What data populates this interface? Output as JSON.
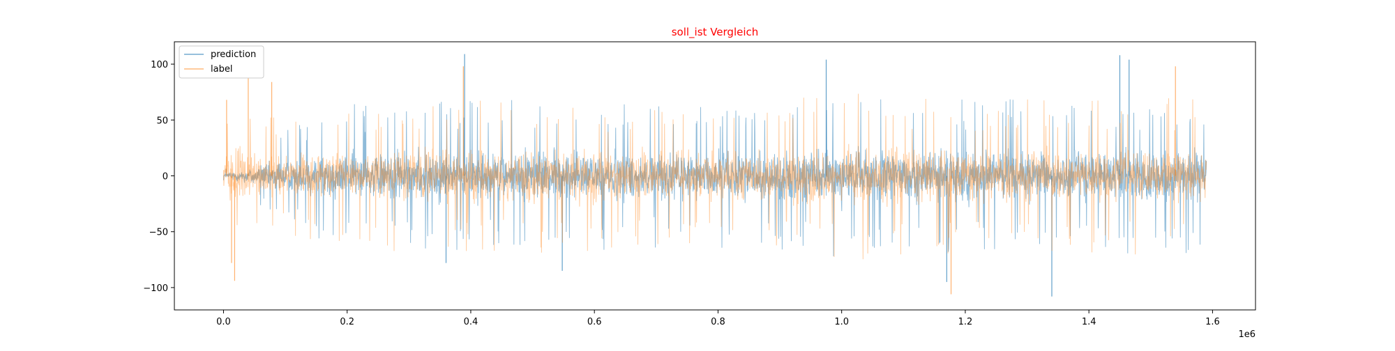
{
  "chart_data": {
    "type": "line",
    "title": "soll_ist Vergleich",
    "title_color": "#ff0000",
    "xlabel": "",
    "ylabel": "",
    "x_offset_label": "1e6",
    "xlim": [
      -0.0795,
      1.6695
    ],
    "ylim": [
      -120,
      120
    ],
    "x_ticks": [
      0.0,
      0.2,
      0.4,
      0.6,
      0.8,
      1.0,
      1.2,
      1.4,
      1.6
    ],
    "x_tick_labels": [
      "0.0",
      "0.2",
      "0.4",
      "0.6",
      "0.8",
      "1.0",
      "1.2",
      "1.4",
      "1.6"
    ],
    "y_ticks": [
      -100,
      -50,
      0,
      50,
      100
    ],
    "y_tick_labels": [
      "−100",
      "−50",
      "0",
      "50",
      "100"
    ],
    "grid": false,
    "legend_position": "top-left",
    "x_range": [
      0.0,
      1.59
    ],
    "series": [
      {
        "name": "prediction",
        "color": "#1f77b4",
        "alpha": 0.5,
        "envelope": {
          "x": [
            0.0,
            0.02,
            0.05,
            0.1,
            0.15,
            0.2,
            0.3,
            0.4,
            0.5,
            0.6,
            0.7,
            0.8,
            0.9,
            1.0,
            1.1,
            1.2,
            1.3,
            1.4,
            1.5,
            1.59
          ],
          "upper": [
            3,
            6,
            12,
            20,
            25,
            28,
            30,
            30,
            30,
            30,
            28,
            28,
            30,
            33,
            32,
            30,
            30,
            30,
            32,
            30
          ],
          "lower": [
            -3,
            -6,
            -12,
            -20,
            -25,
            -28,
            -30,
            -30,
            -30,
            -30,
            -28,
            -28,
            -30,
            -33,
            -32,
            -30,
            -30,
            -30,
            -32,
            -30
          ]
        },
        "spikes": [
          {
            "x": 0.39,
            "y": 109
          },
          {
            "x": 0.975,
            "y": 104
          },
          {
            "x": 1.45,
            "y": 108
          },
          {
            "x": 1.465,
            "y": 104
          },
          {
            "x": 1.34,
            "y": -108
          },
          {
            "x": 0.548,
            "y": -85
          },
          {
            "x": 0.36,
            "y": -78
          },
          {
            "x": 1.17,
            "y": -95
          }
        ]
      },
      {
        "name": "label",
        "color": "#ff7f0e",
        "alpha": 0.4,
        "envelope": {
          "x": [
            0.0,
            0.02,
            0.05,
            0.1,
            0.15,
            0.2,
            0.3,
            0.4,
            0.5,
            0.6,
            0.7,
            0.8,
            0.9,
            1.0,
            1.1,
            1.2,
            1.3,
            1.4,
            1.5,
            1.59
          ],
          "upper": [
            25,
            30,
            28,
            25,
            25,
            28,
            30,
            30,
            30,
            30,
            28,
            28,
            30,
            33,
            32,
            30,
            30,
            30,
            32,
            30
          ],
          "lower": [
            -25,
            -30,
            -28,
            -25,
            -25,
            -28,
            -30,
            -30,
            -30,
            -30,
            -28,
            -28,
            -30,
            -33,
            -32,
            -30,
            -30,
            -30,
            -32,
            -30
          ]
        },
        "spikes": [
          {
            "x": 0.005,
            "y": 68
          },
          {
            "x": 0.04,
            "y": 88
          },
          {
            "x": 0.078,
            "y": 84
          },
          {
            "x": 0.018,
            "y": -94
          },
          {
            "x": 0.013,
            "y": -78
          },
          {
            "x": 0.388,
            "y": 98
          },
          {
            "x": 1.177,
            "y": -106
          },
          {
            "x": 1.54,
            "y": 98
          }
        ]
      }
    ]
  }
}
